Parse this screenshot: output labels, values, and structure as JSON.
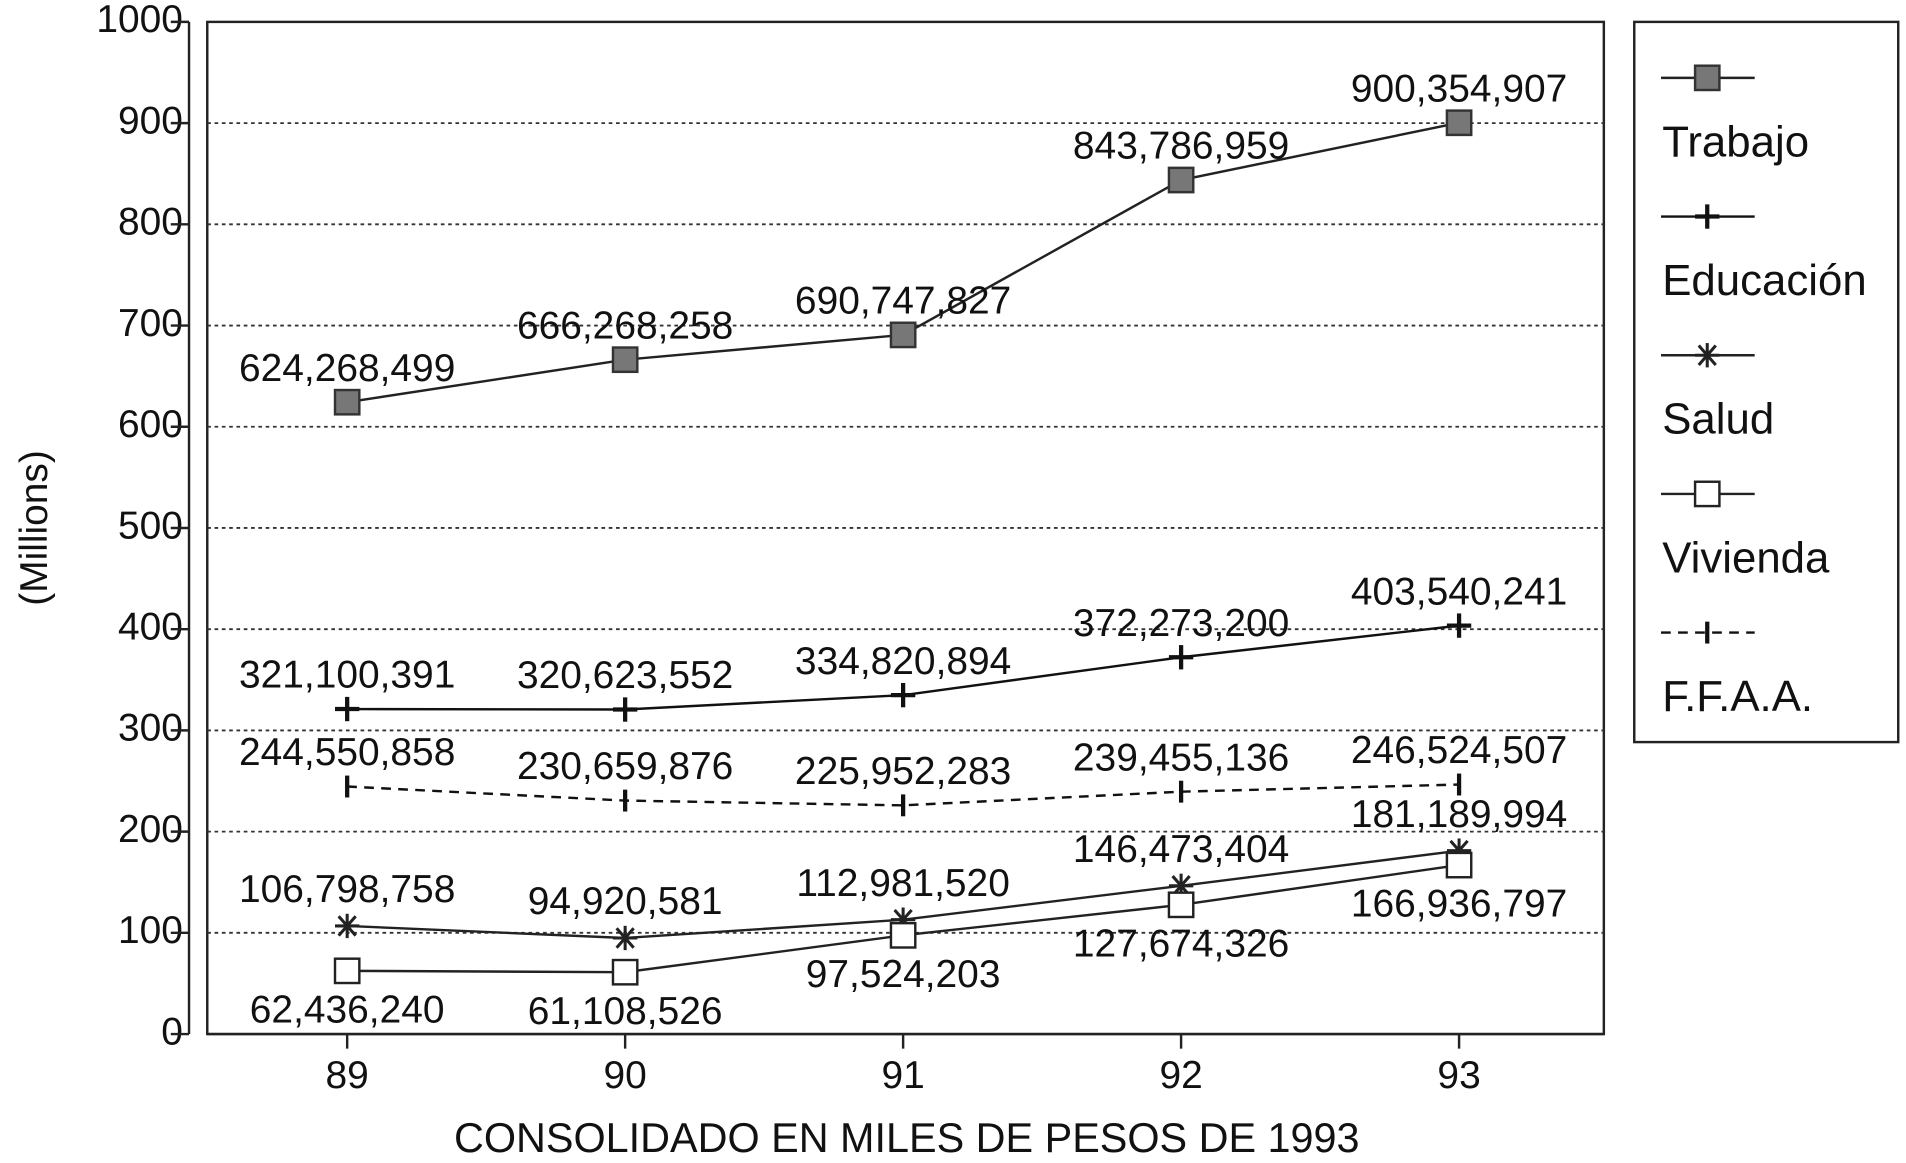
{
  "chart_data": {
    "type": "line",
    "y_label": "(Millions)",
    "x_label": "CONSOLIDADO EN MILES DE PESOS DE 1993",
    "categories": [
      "89",
      "90",
      "91",
      "92",
      "93"
    ],
    "ylim": [
      0,
      1000
    ],
    "yticks": [
      0,
      100,
      200,
      300,
      400,
      500,
      600,
      700,
      800,
      900,
      1000
    ],
    "grid": true,
    "legend": "right",
    "series": [
      {
        "name": "Trabajo",
        "color": "#222222",
        "marker": "filled-square",
        "values": [
          624.268499,
          666.268258,
          690.747827,
          843.786959,
          900.354907
        ],
        "value_labels": [
          "624,268,499",
          "666,268,258",
          "690,747,827",
          "843,786,959",
          "900,354,907"
        ]
      },
      {
        "name": "Educación",
        "color": "#111111",
        "marker": "plus",
        "values": [
          321.100391,
          320.623552,
          334.820894,
          372.2732,
          403.540241
        ],
        "value_labels": [
          "321,100,391",
          "320,623,552",
          "334,820,894",
          "372,273,200",
          "403,540,241"
        ]
      },
      {
        "name": "Salud",
        "color": "#222222",
        "marker": "asterisk",
        "values": [
          106.798758,
          94.920581,
          112.98152,
          146.473404,
          181.189994
        ],
        "value_labels": [
          "106,798,758",
          "94,920,581",
          "112,981,520",
          "146,473,404",
          "181,189,994"
        ]
      },
      {
        "name": "Vivienda",
        "color": "#222222",
        "marker": "open-square",
        "values": [
          62.43624,
          61.108526,
          97.524203,
          127.674326,
          166.936797
        ],
        "value_labels": [
          "62,436,240",
          "61,108,526",
          "97,524,203",
          "127,674,326",
          "166,936,797"
        ]
      },
      {
        "name": "F.F.A.A.",
        "color": "#111111",
        "marker": "tick",
        "dashed": true,
        "values": [
          244.550858,
          230.659876,
          225.952283,
          239.455136,
          246.524507
        ],
        "value_labels": [
          "244,550,858",
          "230,659,876",
          "225,952,283",
          "239,455,136",
          "246,524,507"
        ]
      }
    ]
  }
}
